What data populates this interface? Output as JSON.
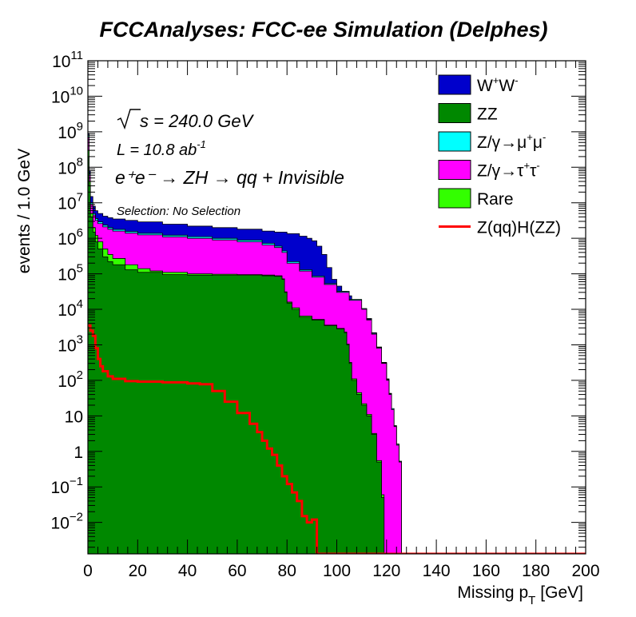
{
  "chart_data": {
    "type": "area",
    "title": "FCCAnalyses: FCC-ee Simulation (Delphes)",
    "xlabel": "Missing p",
    "xlabel_sub": "T",
    "xlabel_unit": "[GeV]",
    "ylabel": "events / 1.0 GeV",
    "xlim": [
      0,
      200
    ],
    "ylim": [
      0.0013,
      100000000000
    ],
    "y_scale": "log",
    "x_ticks": [
      "0",
      "20",
      "40",
      "60",
      "80",
      "100",
      "120",
      "140",
      "160",
      "180",
      "200"
    ],
    "y_ticks": [
      {
        "value": 100000000000,
        "base": "10",
        "exp": "11"
      },
      {
        "value": 10000000000,
        "base": "10",
        "exp": "10"
      },
      {
        "value": 1000000000,
        "base": "10",
        "exp": "9"
      },
      {
        "value": 100000000,
        "base": "10",
        "exp": "8"
      },
      {
        "value": 10000000,
        "base": "10",
        "exp": "7"
      },
      {
        "value": 1000000,
        "base": "10",
        "exp": "6"
      },
      {
        "value": 100000,
        "base": "10",
        "exp": "5"
      },
      {
        "value": 10000,
        "base": "10",
        "exp": "4"
      },
      {
        "value": 1000,
        "base": "10",
        "exp": "3"
      },
      {
        "value": 100,
        "base": "10",
        "exp": "2"
      },
      {
        "value": 10,
        "base": "10",
        "exp": ""
      },
      {
        "value": 1,
        "base": "1",
        "exp": ""
      },
      {
        "value": 0.1,
        "base": "10",
        "exp": "−1"
      },
      {
        "value": 0.01,
        "base": "10",
        "exp": "−2"
      }
    ],
    "annotations": {
      "sqrt_s": "s = 240.0 GeV",
      "lumi_prefix": "L = 10.8 ab",
      "lumi_exp": "-1",
      "process": "e⁺e⁻ → ZH → qq + Invisible",
      "selection": "Selection: No Selection"
    },
    "legend_position": "top-right",
    "stack_boundaries": [
      {
        "name": "ZZ",
        "color": "#008800",
        "points": [
          [
            0,
            200000000
          ],
          [
            0.5,
            30000000
          ],
          [
            1,
            4000000
          ],
          [
            2,
            1500000
          ],
          [
            3,
            800000
          ],
          [
            4,
            500000
          ],
          [
            6,
            300000
          ],
          [
            8,
            220000
          ],
          [
            10,
            180000
          ],
          [
            15,
            130000
          ],
          [
            20,
            110000
          ],
          [
            30,
            95000
          ],
          [
            40,
            92000
          ],
          [
            50,
            90000
          ],
          [
            60,
            90000
          ],
          [
            70,
            88000
          ],
          [
            75,
            85000
          ],
          [
            78,
            70000
          ],
          [
            79,
            30000
          ],
          [
            80,
            15000
          ],
          [
            82,
            10000
          ],
          [
            85,
            6000
          ],
          [
            90,
            5000
          ],
          [
            95,
            3500
          ],
          [
            100,
            2800
          ],
          [
            103,
            2200
          ],
          [
            104,
            1000
          ],
          [
            105,
            300
          ],
          [
            106,
            100
          ],
          [
            108,
            40
          ],
          [
            110,
            20
          ],
          [
            112,
            10
          ],
          [
            114,
            3
          ],
          [
            116,
            0.5
          ],
          [
            118,
            0.05
          ],
          [
            119,
            0.0013
          ]
        ]
      },
      {
        "name": "Rare",
        "color": "#33ff00",
        "points": [
          [
            0,
            300000000
          ],
          [
            0.5,
            40000000
          ],
          [
            1,
            5000000
          ],
          [
            2,
            2000000
          ],
          [
            3,
            1200000
          ],
          [
            4,
            800000
          ],
          [
            6,
            500000
          ],
          [
            8,
            350000
          ],
          [
            10,
            270000
          ],
          [
            15,
            180000
          ],
          [
            20,
            140000
          ],
          [
            25,
            120000
          ],
          [
            30,
            110000
          ],
          [
            40,
            100000
          ],
          [
            50,
            97000
          ],
          [
            60,
            95000
          ],
          [
            70,
            92000
          ],
          [
            75,
            88000
          ],
          [
            78,
            72000
          ],
          [
            79,
            31000
          ],
          [
            80,
            16000
          ],
          [
            82,
            11000
          ],
          [
            85,
            6500
          ],
          [
            90,
            5200
          ],
          [
            95,
            3600
          ],
          [
            100,
            2900
          ],
          [
            103,
            2300
          ],
          [
            104,
            1050
          ],
          [
            105,
            320
          ],
          [
            106,
            110
          ],
          [
            108,
            45
          ],
          [
            110,
            22
          ],
          [
            112,
            11
          ],
          [
            114,
            3.2
          ],
          [
            116,
            0.55
          ],
          [
            118,
            0.06
          ],
          [
            119,
            0.0013
          ]
        ]
      },
      {
        "name": "Z/γ→τ⁺τ⁻",
        "color": "#ff00ff",
        "points": [
          [
            0,
            700000000
          ],
          [
            0.5,
            60000000
          ],
          [
            1,
            9000000
          ],
          [
            2,
            4500000
          ],
          [
            3,
            3200000
          ],
          [
            4,
            2600000
          ],
          [
            6,
            2100000
          ],
          [
            8,
            1800000
          ],
          [
            10,
            1600000
          ],
          [
            15,
            1400000
          ],
          [
            20,
            1250000
          ],
          [
            30,
            1100000
          ],
          [
            40,
            1000000
          ],
          [
            50,
            900000
          ],
          [
            60,
            800000
          ],
          [
            70,
            650000
          ],
          [
            75,
            550000
          ],
          [
            78,
            400000
          ],
          [
            80,
            200000
          ],
          [
            85,
            120000
          ],
          [
            90,
            80000
          ],
          [
            95,
            50000
          ],
          [
            100,
            30000
          ],
          [
            105,
            18000
          ],
          [
            110,
            10000
          ],
          [
            112,
            5000
          ],
          [
            114,
            2000
          ],
          [
            116,
            800
          ],
          [
            118,
            300
          ],
          [
            120,
            100
          ],
          [
            121,
            40
          ],
          [
            122,
            15
          ],
          [
            123,
            5
          ],
          [
            124,
            1.5
          ],
          [
            125,
            0.5
          ],
          [
            126,
            0.0013
          ]
        ]
      },
      {
        "name": "Z/γ→μ⁺μ⁻",
        "color": "#00ffff",
        "points": [
          [
            0,
            800000000
          ],
          [
            0.5,
            65000000
          ],
          [
            1,
            10000000
          ],
          [
            2,
            5000000
          ],
          [
            3,
            3600000
          ],
          [
            4,
            2900000
          ],
          [
            6,
            2350000
          ],
          [
            8,
            2000000
          ],
          [
            10,
            1780000
          ],
          [
            15,
            1550000
          ],
          [
            20,
            1380000
          ],
          [
            30,
            1220000
          ],
          [
            40,
            1110000
          ],
          [
            50,
            1000000
          ],
          [
            60,
            890000
          ],
          [
            70,
            720000
          ],
          [
            75,
            600000
          ],
          [
            78,
            440000
          ],
          [
            80,
            220000
          ],
          [
            85,
            130000
          ],
          [
            90,
            86000
          ],
          [
            95,
            53000
          ],
          [
            100,
            32000
          ],
          [
            105,
            19000
          ],
          [
            110,
            10500
          ],
          [
            112,
            5200
          ],
          [
            114,
            2100
          ],
          [
            116,
            840
          ],
          [
            118,
            310
          ],
          [
            120,
            105
          ],
          [
            121,
            42
          ],
          [
            122,
            16
          ],
          [
            123,
            5.2
          ],
          [
            124,
            1.6
          ],
          [
            125,
            0.52
          ],
          [
            126,
            0.0013
          ]
        ]
      },
      {
        "name": "W⁺W⁻",
        "color": "#0000cc",
        "points": [
          [
            0,
            900000000
          ],
          [
            0.5,
            80000000
          ],
          [
            1,
            15000000
          ],
          [
            2,
            8000000
          ],
          [
            3,
            6000000
          ],
          [
            4,
            5000000
          ],
          [
            6,
            4200000
          ],
          [
            8,
            3800000
          ],
          [
            10,
            3500000
          ],
          [
            15,
            3200000
          ],
          [
            20,
            2900000
          ],
          [
            30,
            2500000
          ],
          [
            40,
            2200000
          ],
          [
            50,
            2000000
          ],
          [
            60,
            1800000
          ],
          [
            70,
            1600000
          ],
          [
            75,
            1500000
          ],
          [
            80,
            1350000
          ],
          [
            85,
            1150000
          ],
          [
            88,
            1000000
          ],
          [
            90,
            850000
          ],
          [
            92,
            600000
          ],
          [
            94,
            350000
          ],
          [
            96,
            150000
          ],
          [
            98,
            70000
          ],
          [
            100,
            45000
          ],
          [
            102,
            32000
          ],
          [
            104,
            24000
          ],
          [
            106,
            18000
          ],
          [
            108,
            13000
          ],
          [
            110,
            10500
          ],
          [
            112,
            5500
          ],
          [
            114,
            2200
          ],
          [
            116,
            870
          ],
          [
            118,
            320
          ],
          [
            120,
            110
          ],
          [
            121,
            43
          ],
          [
            122,
            16
          ],
          [
            123,
            5.3
          ],
          [
            124,
            1.6
          ],
          [
            125,
            0.53
          ],
          [
            126,
            0.0013
          ]
        ]
      }
    ],
    "signal_line": {
      "name": "Z(qq)H(ZZ)",
      "color": "#ff0000",
      "points": [
        [
          0,
          3500
        ],
        [
          1,
          2500
        ],
        [
          2,
          1800
        ],
        [
          3,
          800
        ],
        [
          4,
          400
        ],
        [
          5,
          250
        ],
        [
          6,
          180
        ],
        [
          8,
          130
        ],
        [
          10,
          110
        ],
        [
          15,
          95
        ],
        [
          20,
          92
        ],
        [
          30,
          88
        ],
        [
          40,
          82
        ],
        [
          45,
          78
        ],
        [
          50,
          50
        ],
        [
          55,
          25
        ],
        [
          60,
          12
        ],
        [
          65,
          6
        ],
        [
          68,
          3.5
        ],
        [
          70,
          2
        ],
        [
          72,
          1.2
        ],
        [
          74,
          0.8
        ],
        [
          76,
          0.4
        ],
        [
          78,
          0.2
        ],
        [
          80,
          0.12
        ],
        [
          82,
          0.07
        ],
        [
          84,
          0.04
        ],
        [
          86,
          0.015
        ],
        [
          88,
          0.01
        ],
        [
          90,
          0.012
        ],
        [
          92,
          0.0013
        ],
        [
          200,
          0.0013
        ]
      ]
    }
  },
  "legend": [
    {
      "label_main": "W",
      "sup1": "+",
      "label_mid": "W",
      "sup2": "-",
      "color": "#0000cc",
      "type": "box"
    },
    {
      "label": "ZZ",
      "color": "#008800",
      "type": "box"
    },
    {
      "label_main": "Z/γ→μ",
      "sup1": "+",
      "label_mid": "μ",
      "sup2": "-",
      "color": "#00ffff",
      "type": "box"
    },
    {
      "label_main": "Z/γ→τ",
      "sup1": "+",
      "label_mid": "τ",
      "sup2": "-",
      "color": "#ff00ff",
      "type": "box"
    },
    {
      "label": "Rare",
      "color": "#33ff00",
      "type": "box"
    },
    {
      "label": "Z(qq)H(ZZ)",
      "color": "#ff0000",
      "type": "line"
    }
  ]
}
